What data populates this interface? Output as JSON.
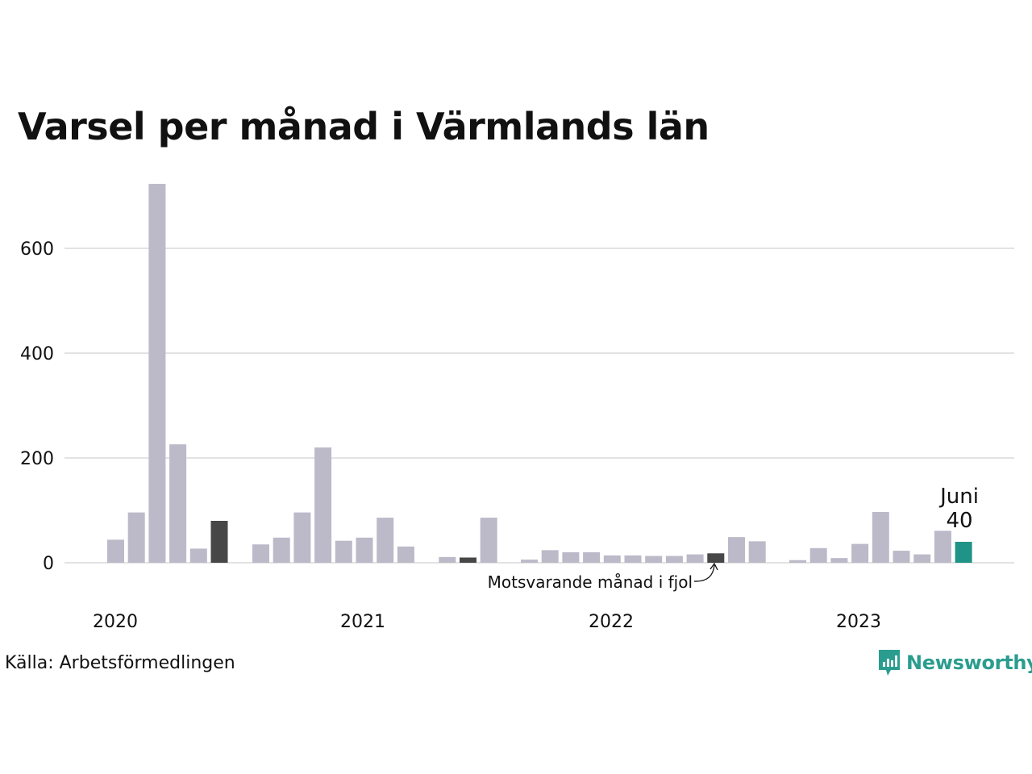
{
  "title": "Varsel per månad i Värmlands län",
  "source": "Källa: Arbetsförmedlingen",
  "brand": "Newsworthy",
  "colors": {
    "default": "#bcbac9",
    "previous_year": "#474747",
    "current": "#1f9486",
    "grid": "#e3e3e3",
    "brand": "#2a9d8f"
  },
  "chart_data": {
    "type": "bar",
    "ylim": [
      0,
      740
    ],
    "y_ticks": [
      "0",
      "200",
      "400",
      "600"
    ],
    "x_year_labels": [
      "2020",
      "2021",
      "2022",
      "2023"
    ],
    "grid": true,
    "highlight_label": {
      "month": "Juni",
      "value": "40"
    },
    "annotation": "Motsvarande månad i fjol",
    "series": [
      {
        "year": "2020",
        "values": [
          44,
          96,
          723,
          226,
          27,
          80
        ]
      },
      {
        "year": "2021",
        "values": [
          35,
          48,
          96,
          220,
          42,
          48,
          86,
          31
        ]
      },
      {
        "year": "2021-b",
        "values": [
          null,
          11,
          10,
          86
        ]
      },
      {
        "year": "2022",
        "values": [
          6,
          24,
          20,
          20,
          14,
          14,
          13,
          13,
          16,
          18,
          49,
          41
        ]
      },
      {
        "year": "2023",
        "values": [
          5,
          28,
          9,
          36,
          97,
          23,
          16,
          61,
          40
        ]
      }
    ]
  }
}
